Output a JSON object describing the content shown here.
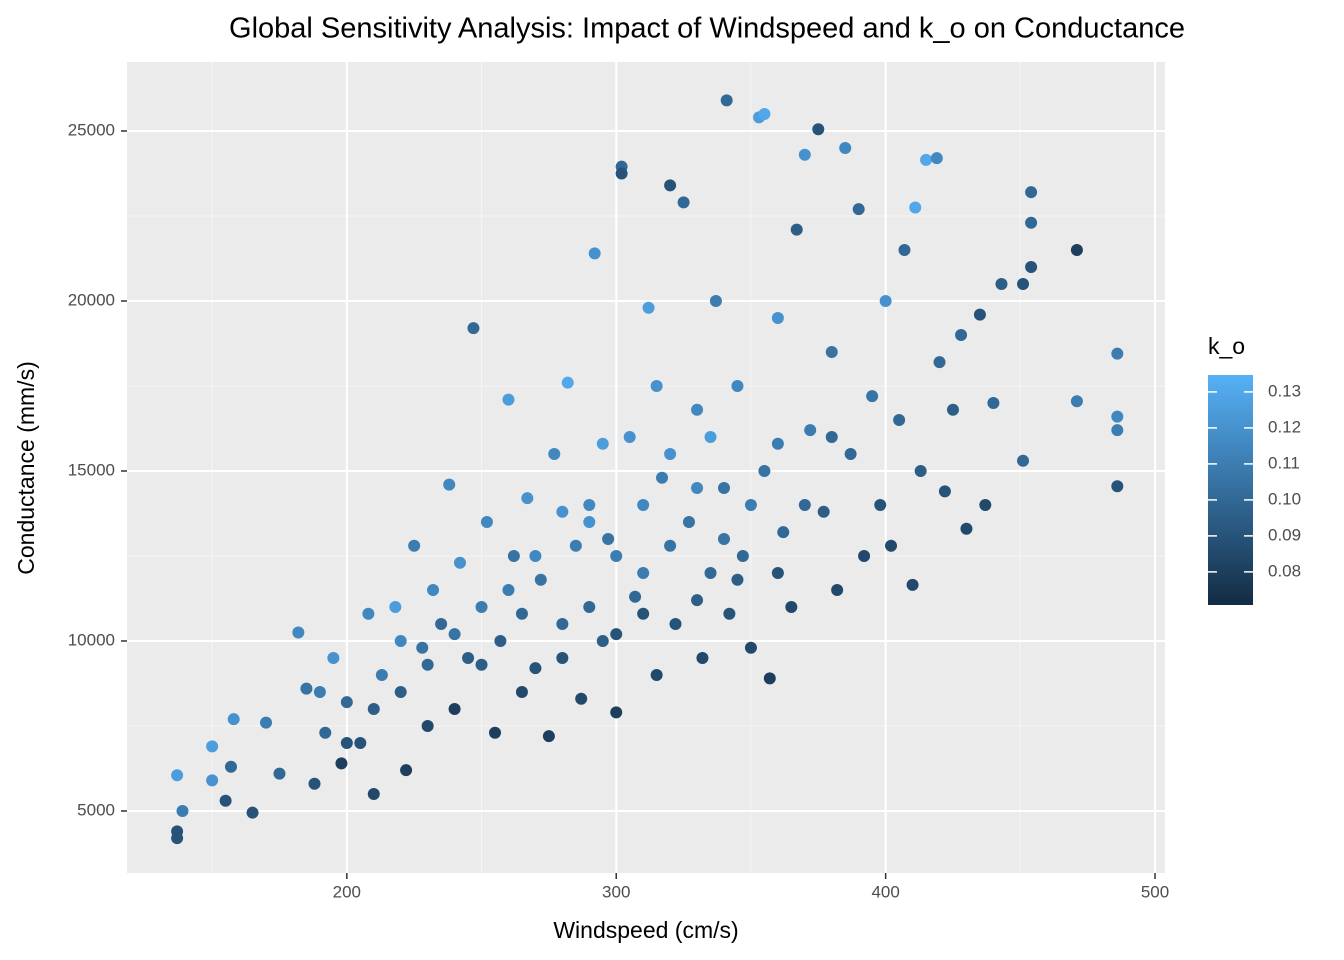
{
  "chart_data": {
    "type": "scatter",
    "title": "Global Sensitivity Analysis: Impact of Windspeed and k_o on Conductance",
    "x_label": "Windspeed (cm/s)",
    "y_label": "Conductance (mm/s)",
    "xlim": [
      118.4,
      503.7
    ],
    "ylim": [
      3176,
      27029
    ],
    "xticks": [
      200,
      300,
      400,
      500
    ],
    "yticks": [
      5000,
      10000,
      15000,
      20000,
      25000
    ],
    "grid": true,
    "colorbar": {
      "title": "k_o",
      "low": "#132B43",
      "high": "#56B1F7",
      "lim": [
        0.0708,
        0.1347
      ],
      "ticks": [
        0.08,
        0.09,
        {
          "value": 0.1,
          "label": "0.10"
        },
        0.11,
        0.12,
        0.13
      ]
    },
    "series": [
      {
        "x": [
          137,
          137,
          137,
          139,
          150,
          150,
          155,
          157,
          158,
          165,
          170,
          175,
          182,
          185,
          188,
          192,
          195,
          198,
          200,
          205,
          208,
          210,
          213,
          218,
          220,
          222,
          225,
          228,
          230,
          232,
          235,
          238,
          240,
          242,
          245,
          247,
          250,
          252,
          255,
          257,
          260,
          262,
          265,
          267,
          270,
          272,
          275,
          277,
          280,
          282,
          285,
          287,
          290,
          292,
          295,
          297,
          300,
          302,
          302,
          305,
          307,
          310,
          312,
          315,
          317,
          320,
          322,
          325,
          327,
          330,
          332,
          335,
          337,
          340,
          341,
          342,
          345,
          347,
          350,
          353,
          355,
          355,
          357,
          360,
          362,
          365,
          367,
          370,
          372,
          375,
          377,
          380,
          382,
          385,
          387,
          390,
          392,
          395,
          398,
          400,
          402,
          405,
          407,
          410,
          411,
          413,
          415,
          419,
          420,
          422,
          425,
          428,
          430,
          435,
          437,
          440,
          443,
          451,
          451,
          454,
          454,
          454,
          471,
          471,
          486,
          486,
          486,
          486,
          260,
          270,
          280,
          290,
          300,
          310,
          320,
          330,
          340,
          350,
          290,
          300,
          250,
          240,
          230,
          310,
          320,
          330,
          345,
          360,
          370,
          280,
          265,
          210,
          200,
          190,
          220,
          335,
          315,
          295,
          360,
          380
        ],
        "values": [
          6050,
          4200,
          4400,
          5000,
          5900,
          6900,
          5300,
          6300,
          7700,
          4950,
          7600,
          6100,
          10250,
          8600,
          5800,
          7300,
          9500,
          6400,
          8200,
          7000,
          10800,
          5500,
          9000,
          11000,
          8500,
          6200,
          12800,
          9800,
          7500,
          11500,
          10500,
          14600,
          8000,
          12300,
          9500,
          19200,
          11000,
          13500,
          7300,
          10000,
          17100,
          12500,
          8500,
          14200,
          9200,
          11800,
          7200,
          15500,
          10500,
          17600,
          12800,
          8300,
          14000,
          21400,
          10000,
          13000,
          7900,
          23950,
          23750,
          16000,
          11300,
          12000,
          19800,
          9000,
          14800,
          23400,
          10500,
          22900,
          13500,
          16800,
          9500,
          12000,
          20000,
          14500,
          25900,
          10800,
          17500,
          12500,
          9800,
          25400,
          25500,
          15000,
          8900,
          19500,
          13200,
          11000,
          22100,
          24300,
          16200,
          25050,
          13800,
          18500,
          11500,
          24500,
          15500,
          22700,
          12500,
          17200,
          14000,
          20000,
          12800,
          16500,
          21500,
          11650,
          22750,
          15000,
          24150,
          24200,
          18200,
          14400,
          16800,
          19000,
          13300,
          19600,
          14000,
          17000,
          20500,
          15300,
          20500,
          23200,
          22300,
          21000,
          21500,
          17050,
          18450,
          14550,
          16600,
          16200,
          11500,
          12500,
          9500,
          11000,
          12500,
          14000,
          12800,
          11200,
          13000,
          14000,
          13500,
          10200,
          9300,
          10200,
          9300,
          10800,
          15500,
          14500,
          11800,
          15800,
          14000,
          13800,
          10800,
          8000,
          7000,
          8500,
          10000,
          16000,
          17500,
          15800,
          12000,
          16000
        ],
        "k_o": [
          0.125,
          0.09,
          0.09,
          0.11,
          0.12,
          0.125,
          0.09,
          0.1,
          0.12,
          0.09,
          0.11,
          0.1,
          0.115,
          0.105,
          0.09,
          0.1,
          0.12,
          0.08,
          0.1,
          0.09,
          0.115,
          0.085,
          0.11,
          0.125,
          0.095,
          0.08,
          0.11,
          0.105,
          0.085,
          0.115,
          0.1,
          0.115,
          0.08,
          0.12,
          0.095,
          0.1,
          0.11,
          0.115,
          0.08,
          0.095,
          0.125,
          0.105,
          0.085,
          0.12,
          0.09,
          0.105,
          0.08,
          0.115,
          0.1,
          0.13,
          0.11,
          0.085,
          0.115,
          0.12,
          0.095,
          0.105,
          0.08,
          0.1,
          0.09,
          0.12,
          0.1,
          0.11,
          0.125,
          0.085,
          0.11,
          0.09,
          0.09,
          0.1,
          0.105,
          0.115,
          0.085,
          0.1,
          0.11,
          0.105,
          0.1,
          0.09,
          0.115,
          0.1,
          0.085,
          0.125,
          0.13,
          0.105,
          0.08,
          0.12,
          0.1,
          0.085,
          0.095,
          0.12,
          0.11,
          0.09,
          0.095,
          0.105,
          0.085,
          0.115,
          0.1,
          0.1,
          0.085,
          0.105,
          0.09,
          0.12,
          0.085,
          0.1,
          0.1,
          0.085,
          0.13,
          0.095,
          0.13,
          0.115,
          0.1,
          0.09,
          0.095,
          0.1,
          0.085,
          0.09,
          0.085,
          0.1,
          0.095,
          0.1,
          0.09,
          0.1,
          0.1,
          0.09,
          0.08,
          0.11,
          0.11,
          0.09,
          0.115,
          0.11,
          0.11,
          0.115,
          0.09,
          0.1,
          0.11,
          0.115,
          0.105,
          0.095,
          0.105,
          0.11,
          0.12,
          0.09,
          0.095,
          0.105,
          0.1,
          0.09,
          0.12,
          0.115,
          0.095,
          0.11,
          0.1,
          0.12,
          0.1,
          0.095,
          0.09,
          0.11,
          0.115,
          0.125,
          0.12,
          0.125,
          0.09,
          0.1
        ]
      }
    ]
  }
}
